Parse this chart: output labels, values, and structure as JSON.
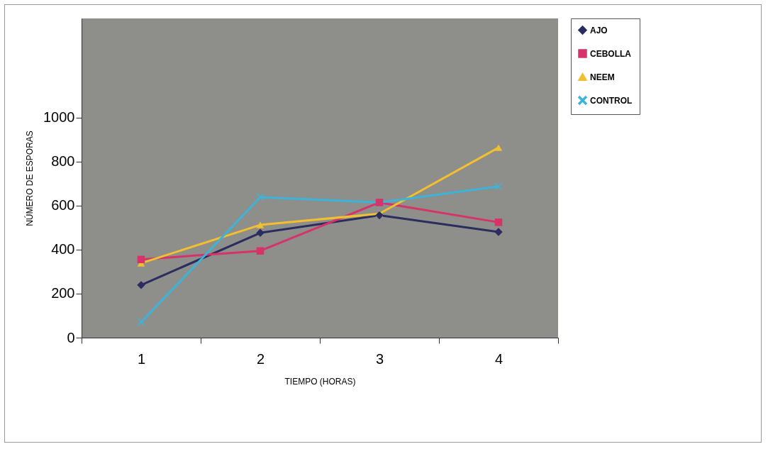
{
  "chart_data": {
    "type": "line",
    "xlabel": "TIEMPO (HORAS)",
    "ylabel": "NÚMERO DE ESPORAS",
    "categories": [
      "1",
      "2",
      "3",
      "4"
    ],
    "ylim": [
      0,
      1450
    ],
    "yticks": [
      0,
      200,
      400,
      600,
      800,
      1000
    ],
    "grid": false,
    "legend": "right",
    "series": [
      {
        "name": "AJO",
        "color": "#2b2d5e",
        "marker": "diamond",
        "values": [
          239,
          476,
          556,
          480
        ]
      },
      {
        "name": "CEBOLLA",
        "color": "#d6336b",
        "marker": "square",
        "values": [
          355,
          394,
          614,
          524
        ]
      },
      {
        "name": "NEEM",
        "color": "#f0c030",
        "marker": "triangle",
        "values": [
          338,
          512,
          563,
          863
        ]
      },
      {
        "name": "CONTROL",
        "color": "#3cb4d8",
        "marker": "cross",
        "values": [
          70,
          638,
          614,
          687
        ]
      }
    ]
  }
}
